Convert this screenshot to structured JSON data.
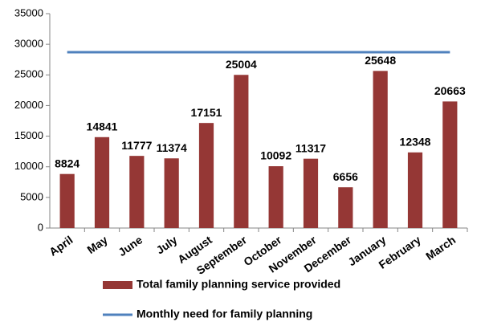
{
  "chart_data": {
    "type": "bar",
    "categories": [
      "April",
      "May",
      "June",
      "July",
      "August",
      "September",
      "October",
      "November",
      "December",
      "January",
      "February",
      "March"
    ],
    "series": [
      {
        "name": "Total family planning service provided",
        "color": "#953735",
        "values": [
          8824,
          14841,
          11777,
          11374,
          17151,
          25004,
          10092,
          11317,
          6656,
          25648,
          12348,
          20663
        ]
      },
      {
        "name": "Monthly need for family planning",
        "color": "#4f81bd",
        "type": "line",
        "values": [
          28700,
          28700,
          28700,
          28700,
          28700,
          28700,
          28700,
          28700,
          28700,
          28700,
          28700,
          28700
        ]
      }
    ],
    "ylim": [
      0,
      35000
    ],
    "yticks": [
      0,
      5000,
      10000,
      15000,
      20000,
      25000,
      30000,
      35000
    ],
    "grid": false
  }
}
